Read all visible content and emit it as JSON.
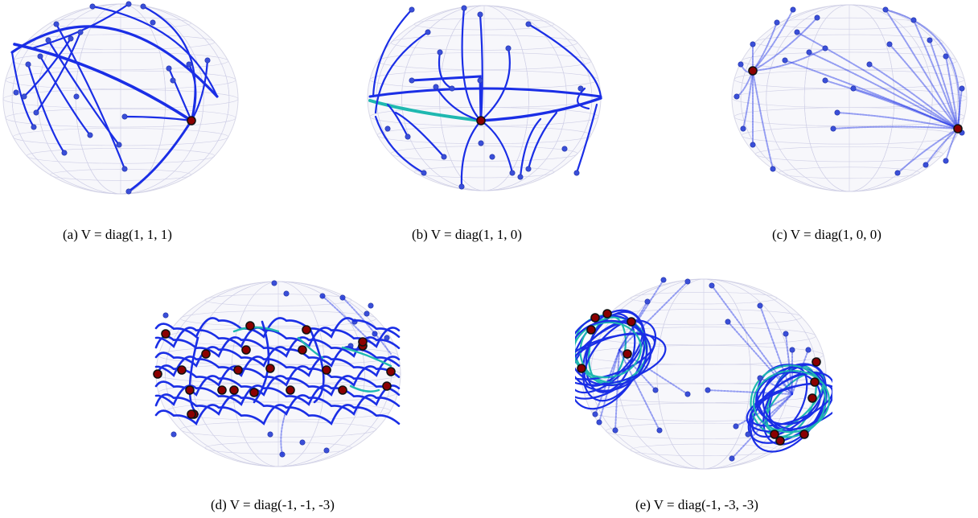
{
  "panels": [
    {
      "id": "a",
      "caption": "(a) V = diag(1, 1, 1)"
    },
    {
      "id": "b",
      "caption": "(b) V = diag(1, 1, 0)"
    },
    {
      "id": "c",
      "caption": "(c) V = diag(1, 0, 0)"
    },
    {
      "id": "d",
      "caption": "(d) V = diag(-1, -1, -3)"
    },
    {
      "id": "e",
      "caption": "(e) V = diag(-1, -3, -3)"
    }
  ],
  "colors": {
    "trajectory": "#1a2ee6",
    "trajectory_fast": "#1fb8b0",
    "start_point": "#3a4fd8",
    "fixed_point": "#8b0000",
    "sphere_grid": "#cfcfe6"
  }
}
